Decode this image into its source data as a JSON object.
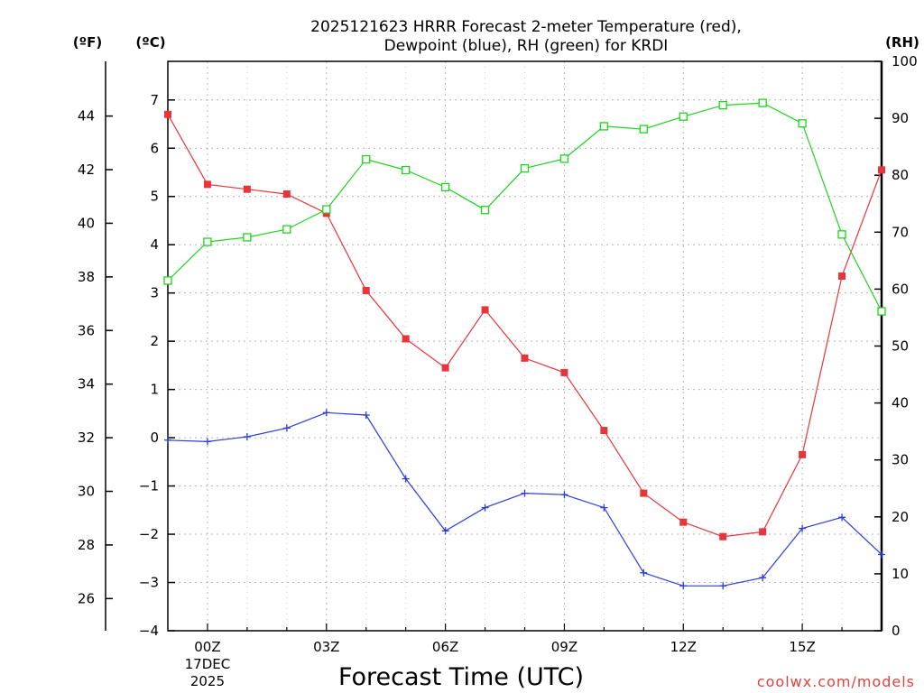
{
  "chart_data": {
    "type": "line",
    "title_line1": "2025121623 HRRR Forecast 2-meter Temperature (red),",
    "title_line2": "Dewpoint (blue), RH (green) for KRDI",
    "xlabel": "Forecast Time (UTC)",
    "credit": "coolwx.com/models",
    "units": {
      "fahrenheit": "(ºF)",
      "celsius": "(ºC)",
      "rh": "(RH)"
    },
    "x_hours": [
      -1,
      0,
      1,
      2,
      3,
      4,
      5,
      6,
      7,
      8,
      9,
      10,
      11,
      12,
      13,
      14,
      15,
      16,
      17
    ],
    "x_ticks": [
      {
        "hour": 0,
        "label": "00Z",
        "sub1": "17DEC",
        "sub2": "2025"
      },
      {
        "hour": 3,
        "label": "03Z"
      },
      {
        "hour": 6,
        "label": "06Z"
      },
      {
        "hour": 9,
        "label": "09Z"
      },
      {
        "hour": 12,
        "label": "12Z"
      },
      {
        "hour": 15,
        "label": "15Z"
      }
    ],
    "xlim": [
      -1,
      17
    ],
    "ylim_c": [
      -4,
      7.8
    ],
    "ylim_rh": [
      0,
      100
    ],
    "celsius_ticks": [
      "−4",
      "−3",
      "−2",
      "−1",
      "0",
      "1",
      "2",
      "3",
      "4",
      "5",
      "6",
      "7"
    ],
    "fahrenheit_ticks": [
      "26",
      "28",
      "30",
      "32",
      "34",
      "36",
      "38",
      "40",
      "42",
      "44"
    ],
    "rh_ticks": [
      "0",
      "10",
      "20",
      "30",
      "40",
      "50",
      "60",
      "70",
      "80",
      "90",
      "100"
    ],
    "series": [
      {
        "name": "Temperature",
        "color": "#e8343a",
        "marker": "filled-square",
        "values": [
          6.7,
          5.25,
          5.15,
          5.05,
          4.65,
          3.05,
          2.05,
          1.45,
          2.65,
          1.65,
          1.35,
          0.15,
          -1.15,
          -1.75,
          -2.05,
          -1.95,
          -0.35,
          3.35,
          5.55
        ]
      },
      {
        "name": "Dewpoint",
        "color": "#2b3cd8",
        "marker": "plus",
        "values": [
          -0.05,
          -0.08,
          0.02,
          0.2,
          0.52,
          0.47,
          -0.85,
          -1.93,
          -1.45,
          -1.15,
          -1.18,
          -1.45,
          -2.8,
          -3.07,
          -3.07,
          -2.9,
          -1.88,
          -1.65,
          -2.42
        ]
      },
      {
        "name": "RH",
        "color": "#1ed41e",
        "marker": "open-square",
        "values": [
          61.5,
          68.3,
          69.1,
          70.5,
          74.0,
          82.8,
          80.9,
          77.9,
          73.9,
          81.2,
          82.9,
          88.6,
          88.1,
          90.3,
          92.3,
          92.7,
          89.1,
          69.6,
          56.1
        ]
      }
    ]
  }
}
